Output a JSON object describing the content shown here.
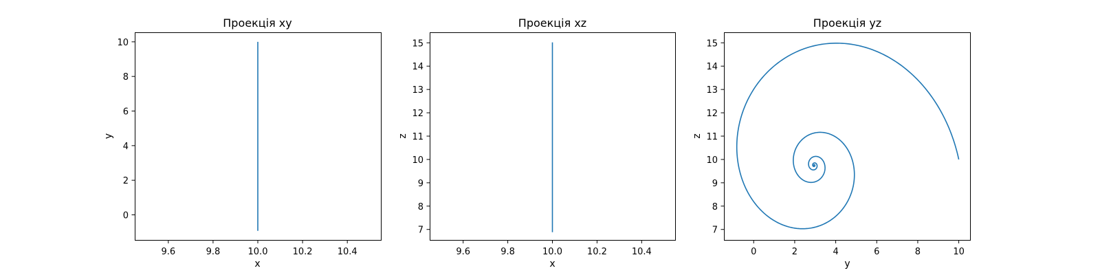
{
  "chart_data": [
    {
      "type": "line",
      "title": "Проекція xy",
      "xlabel": "x",
      "ylabel": "y",
      "xlim": [
        9.45,
        10.55
      ],
      "ylim": [
        -1.45,
        10.55
      ],
      "xticks": [
        9.6,
        9.8,
        10.0,
        10.2,
        10.4
      ],
      "xticklabels": [
        "9.6",
        "9.8",
        "10.0",
        "10.2",
        "10.4"
      ],
      "yticks": [
        0,
        2,
        4,
        6,
        8,
        10
      ],
      "yticklabels": [
        "0",
        "2",
        "4",
        "6",
        "8",
        "10"
      ],
      "color": "#1f77b4",
      "series": [
        {
          "x": [
            10.0,
            10.0,
            10.0,
            10.0,
            10.0
          ],
          "y": [
            10.0,
            3.0,
            -0.9,
            3.0,
            3.0
          ]
        }
      ]
    },
    {
      "type": "line",
      "title": "Проекція xz",
      "xlabel": "x",
      "ylabel": "z",
      "xlim": [
        9.45,
        10.55
      ],
      "ylim": [
        6.55,
        15.45
      ],
      "xticks": [
        9.6,
        9.8,
        10.0,
        10.2,
        10.4
      ],
      "xticklabels": [
        "9.6",
        "9.8",
        "10.0",
        "10.2",
        "10.4"
      ],
      "yticks": [
        7,
        8,
        9,
        10,
        11,
        12,
        13,
        14,
        15
      ],
      "yticklabels": [
        "7",
        "8",
        "9",
        "10",
        "11",
        "12",
        "13",
        "14",
        "15"
      ],
      "color": "#1f77b4",
      "series": [
        {
          "x": [
            10.0,
            10.0
          ],
          "y": [
            15.02,
            6.88
          ]
        }
      ]
    },
    {
      "type": "line",
      "title": "Проекція yz",
      "xlabel": "y",
      "ylabel": "z",
      "xlim": [
        -1.45,
        10.55
      ],
      "ylim": [
        6.55,
        15.45
      ],
      "xticks": [
        0,
        2,
        4,
        6,
        8,
        10
      ],
      "xticklabels": [
        "0",
        "2",
        "4",
        "6",
        "8",
        "10"
      ],
      "yticks": [
        7,
        8,
        9,
        10,
        11,
        12,
        13,
        14,
        15
      ],
      "yticklabels": [
        "7",
        "8",
        "9",
        "10",
        "11",
        "12",
        "13",
        "14",
        "15"
      ],
      "color": "#1f77b4",
      "series": [
        {
          "spiral": {
            "center": [
              2.95,
              9.75
            ],
            "start_point": [
              10.0,
              10.0
            ],
            "end_point": [
              2.95,
              9.75
            ],
            "decay_per_turn": 0.27,
            "turns": 4.6
          }
        }
      ]
    }
  ]
}
